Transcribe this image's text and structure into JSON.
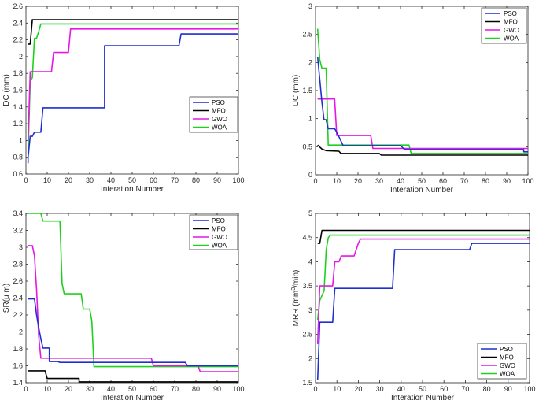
{
  "chart_data": [
    {
      "type": "line",
      "xlabel": "Interation Number",
      "ylabel": "DC (mm)",
      "xlim": [
        0,
        100
      ],
      "ylim": [
        0.6,
        2.6
      ],
      "xticks": [
        0,
        10,
        20,
        30,
        40,
        50,
        60,
        70,
        80,
        90,
        100
      ],
      "yticks": [
        0.6,
        0.8,
        1,
        1.2,
        1.4,
        1.6,
        1.8,
        2,
        2.2,
        2.4,
        2.6
      ],
      "ytick_labels": [
        "0.6",
        "0.8",
        "1",
        "1.2",
        "1.4",
        "1.6",
        "1.8",
        "2",
        "2.2",
        "2.4",
        "2.6"
      ],
      "legend_position": "middle-right",
      "series": [
        {
          "name": "PSO",
          "color": "#1f2fd1",
          "points": [
            [
              1,
              0.73
            ],
            [
              1,
              0.8
            ],
            [
              2,
              1.05
            ],
            [
              3,
              1.05
            ],
            [
              4,
              1.1
            ],
            [
              7,
              1.1
            ],
            [
              8,
              1.39
            ],
            [
              37,
              1.39
            ],
            [
              37,
              2.13
            ],
            [
              72,
              2.13
            ],
            [
              73,
              2.27
            ],
            [
              100,
              2.27
            ]
          ]
        },
        {
          "name": "MFO",
          "color": "#000000",
          "points": [
            [
              1,
              2.15
            ],
            [
              2,
              2.15
            ],
            [
              3,
              2.44
            ],
            [
              100,
              2.44
            ]
          ]
        },
        {
          "name": "GWO",
          "color": "#e617e6",
          "points": [
            [
              1,
              1.0
            ],
            [
              2,
              1.82
            ],
            [
              12,
              1.82
            ],
            [
              13,
              2.05
            ],
            [
              20,
              2.05
            ],
            [
              21,
              2.33
            ],
            [
              100,
              2.33
            ]
          ]
        },
        {
          "name": "WOA",
          "color": "#1fd11f",
          "points": [
            [
              1,
              0.85
            ],
            [
              2,
              1.7
            ],
            [
              3,
              1.75
            ],
            [
              4,
              2.22
            ],
            [
              5,
              2.22
            ],
            [
              6,
              2.3
            ],
            [
              7,
              2.39
            ],
            [
              100,
              2.39
            ]
          ]
        }
      ]
    },
    {
      "type": "line",
      "xlabel": "Interation Number",
      "ylabel": "UC (mm)",
      "xlim": [
        0,
        100
      ],
      "ylim": [
        0,
        3
      ],
      "xticks": [
        0,
        10,
        20,
        30,
        40,
        50,
        60,
        70,
        80,
        90,
        100
      ],
      "yticks": [
        0,
        0.5,
        1,
        1.5,
        2,
        2.5,
        3
      ],
      "ytick_labels": [
        "0",
        "0.5",
        "1",
        "1.5",
        "2",
        "2.5",
        "3"
      ],
      "legend_position": "top-right",
      "series": [
        {
          "name": "PSO",
          "color": "#1f2fd1",
          "points": [
            [
              1,
              2.1
            ],
            [
              2,
              1.7
            ],
            [
              3,
              1.3
            ],
            [
              4,
              0.98
            ],
            [
              5,
              0.98
            ],
            [
              6,
              0.82
            ],
            [
              9,
              0.82
            ],
            [
              10,
              0.76
            ],
            [
              12,
              0.6
            ],
            [
              13,
              0.52
            ],
            [
              40,
              0.52
            ],
            [
              42,
              0.45
            ],
            [
              98,
              0.45
            ],
            [
              98,
              0.41
            ],
            [
              100,
              0.41
            ]
          ]
        },
        {
          "name": "MFO",
          "color": "#000000",
          "points": [
            [
              1,
              0.53
            ],
            [
              3,
              0.46
            ],
            [
              5,
              0.43
            ],
            [
              11,
              0.42
            ],
            [
              12,
              0.38
            ],
            [
              30,
              0.38
            ],
            [
              31,
              0.35
            ],
            [
              100,
              0.35
            ]
          ]
        },
        {
          "name": "GWO",
          "color": "#e617e6",
          "points": [
            [
              1,
              1.35
            ],
            [
              9,
              1.35
            ],
            [
              10,
              0.7
            ],
            [
              26,
              0.7
            ],
            [
              27,
              0.47
            ],
            [
              100,
              0.47
            ]
          ]
        },
        {
          "name": "WOA",
          "color": "#1fd11f",
          "points": [
            [
              1,
              2.6
            ],
            [
              2,
              2.05
            ],
            [
              3,
              1.9
            ],
            [
              5,
              1.9
            ],
            [
              6,
              0.53
            ],
            [
              44,
              0.53
            ],
            [
              45,
              0.38
            ],
            [
              100,
              0.38
            ]
          ]
        }
      ]
    },
    {
      "type": "line",
      "xlabel": "Interation Number",
      "ylabel": "SR(µ m)",
      "xlim": [
        0,
        100
      ],
      "ylim": [
        1.4,
        3.4
      ],
      "xticks": [
        0,
        10,
        20,
        30,
        40,
        50,
        60,
        70,
        80,
        90,
        100
      ],
      "yticks": [
        1.4,
        1.6,
        1.8,
        2,
        2.2,
        2.4,
        2.6,
        2.8,
        3,
        3.2,
        3.4
      ],
      "ytick_labels": [
        "1.4",
        "1.6",
        "1.8",
        "2",
        "2.2",
        "2.4",
        "2.6",
        "2.8",
        "3",
        "3.2",
        "3.4"
      ],
      "legend_position": "top-right",
      "series": [
        {
          "name": "PSO",
          "color": "#1f2fd1",
          "points": [
            [
              1,
              2.39
            ],
            [
              4,
              2.39
            ],
            [
              5,
              2.2
            ],
            [
              6,
              2.05
            ],
            [
              7,
              1.92
            ],
            [
              8,
              1.81
            ],
            [
              11,
              1.81
            ],
            [
              11,
              1.65
            ],
            [
              15,
              1.65
            ],
            [
              16,
              1.64
            ],
            [
              75,
              1.64
            ],
            [
              76,
              1.6
            ],
            [
              100,
              1.6
            ]
          ]
        },
        {
          "name": "MFO",
          "color": "#000000",
          "points": [
            [
              1,
              1.54
            ],
            [
              9,
              1.54
            ],
            [
              10,
              1.45
            ],
            [
              25,
              1.45
            ],
            [
              25,
              1.41
            ],
            [
              100,
              1.41
            ]
          ]
        },
        {
          "name": "GWO",
          "color": "#e617e6",
          "points": [
            [
              1,
              3.02
            ],
            [
              3,
              3.02
            ],
            [
              4,
              2.9
            ],
            [
              5,
              2.5
            ],
            [
              6,
              1.95
            ],
            [
              7,
              1.69
            ],
            [
              59,
              1.69
            ],
            [
              60,
              1.6
            ],
            [
              81,
              1.6
            ],
            [
              82,
              1.53
            ],
            [
              100,
              1.53
            ]
          ]
        },
        {
          "name": "WOA",
          "color": "#1fd11f",
          "points": [
            [
              1,
              3.4
            ],
            [
              7,
              3.4
            ],
            [
              8,
              3.31
            ],
            [
              16,
              3.31
            ],
            [
              17,
              2.57
            ],
            [
              18,
              2.45
            ],
            [
              26,
              2.45
            ],
            [
              27,
              2.27
            ],
            [
              30,
              2.27
            ],
            [
              31,
              2.13
            ],
            [
              32,
              1.59
            ],
            [
              100,
              1.59
            ]
          ]
        }
      ]
    },
    {
      "type": "line",
      "xlabel": "Interation Number",
      "ylabel_parts": [
        "MRR (mm",
        "3",
        "/min)"
      ],
      "xlim": [
        0,
        100
      ],
      "ylim": [
        1.5,
        5
      ],
      "xticks": [
        0,
        10,
        20,
        30,
        40,
        50,
        60,
        70,
        80,
        90,
        100
      ],
      "yticks": [
        1.5,
        2,
        2.5,
        3,
        3.5,
        4,
        4.5,
        5
      ],
      "ytick_labels": [
        "1.5",
        "2",
        "2.5",
        "3",
        "3.5",
        "4",
        "4.5",
        "5"
      ],
      "legend_position": "bottom-right",
      "series": [
        {
          "name": "PSO",
          "color": "#1f2fd1",
          "points": [
            [
              1,
              1.55
            ],
            [
              2,
              2.75
            ],
            [
              8,
              2.75
            ],
            [
              9,
              3.45
            ],
            [
              36,
              3.45
            ],
            [
              37,
              4.25
            ],
            [
              72,
              4.25
            ],
            [
              73,
              4.38
            ],
            [
              100,
              4.38
            ]
          ]
        },
        {
          "name": "MFO",
          "color": "#000000",
          "points": [
            [
              1,
              4.38
            ],
            [
              2,
              4.38
            ],
            [
              3,
              4.65
            ],
            [
              100,
              4.65
            ]
          ]
        },
        {
          "name": "GWO",
          "color": "#e617e6",
          "points": [
            [
              1,
              2.3
            ],
            [
              2,
              3.5
            ],
            [
              8,
              3.5
            ],
            [
              9,
              4.0
            ],
            [
              11,
              4.0
            ],
            [
              12,
              4.12
            ],
            [
              18,
              4.12
            ],
            [
              20,
              4.38
            ],
            [
              21,
              4.47
            ],
            [
              100,
              4.47
            ]
          ]
        },
        {
          "name": "WOA",
          "color": "#1fd11f",
          "points": [
            [
              1,
              2.8
            ],
            [
              2,
              3.2
            ],
            [
              4,
              3.4
            ],
            [
              5,
              4.25
            ],
            [
              6,
              4.5
            ],
            [
              7,
              4.55
            ],
            [
              100,
              4.55
            ]
          ]
        }
      ]
    }
  ]
}
